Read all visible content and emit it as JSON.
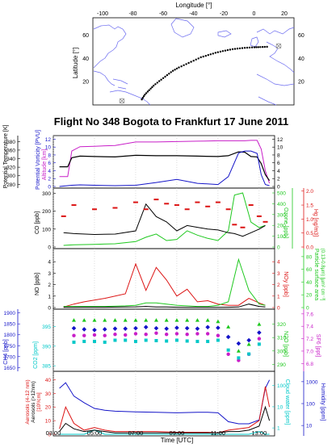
{
  "title": "Flight No 348 Bogota to Frankfurt 17 June 2011",
  "map": {
    "xlabel": "Longitude [°]",
    "ylabel": "Latitude [°]",
    "x_ticks": [
      "-100",
      "-80",
      "-60",
      "-40",
      "-20",
      "0",
      "20"
    ],
    "y_ticks": [
      "20",
      "40",
      "60"
    ],
    "origin": {
      "lon": -74.1,
      "lat": 4.7
    },
    "destination": {
      "lon": 8.6,
      "lat": 50.0
    },
    "colors": {
      "coast": "#6c6cf0",
      "track": "#000000"
    }
  },
  "time_axis": {
    "label": "Time [UTC]",
    "ticks": [
      "03:00",
      "05:00",
      "07:00",
      "09:00",
      "11:00",
      "13:00"
    ]
  },
  "panels": [
    {
      "id": "altitude-pv",
      "left_labels": [
        {
          "text": "Potential Temperature [K]",
          "color": "#000000"
        },
        {
          "text": "Potential Vorticity [PVU]",
          "color": "#1414c8"
        },
        {
          "text": "Altitude [km]",
          "color": "#c81ec8"
        }
      ],
      "left_ticks_outer": [
        "280",
        "300",
        "320",
        "340",
        "360",
        "380"
      ],
      "left_ticks_inner": [
        "0",
        "2",
        "4",
        "6",
        "8",
        "10",
        "12"
      ],
      "right_ticks": [
        "0",
        "2",
        "4",
        "6",
        "8",
        "10",
        "12"
      ]
    },
    {
      "id": "co-ozone-hg",
      "left_label": {
        "text": "CO [ppb]",
        "color": "#000000"
      },
      "left_ticks": [
        "0",
        "100",
        "200",
        "300"
      ],
      "right_labels": [
        {
          "text": "Ozone [ppb]",
          "color": "#1ec81e"
        },
        {
          "text": "Hg [ng/m3]",
          "color": "#dc1414"
        }
      ],
      "right_ticks_1": [
        "0",
        "100",
        "200",
        "300",
        "400",
        "500"
      ],
      "right_ticks_2": [
        "0.0",
        "0.5",
        "1.0",
        "1.5",
        "2.0"
      ]
    },
    {
      "id": "no-particles",
      "left_label": {
        "text": "NO [ppb]",
        "color": "#000000"
      },
      "left_ticks": [
        "0",
        "1",
        "2",
        "3",
        "4"
      ],
      "right_labels": [
        {
          "text": "NOy [ppb]",
          "color": "#dc1414"
        },
        {
          "text": "Particle surface area",
          "color": "#1ec81e"
        },
        {
          "text": "(0.13-0.8µm) [µm² cm⁻³]",
          "color": "#1ec81e"
        }
      ],
      "right_ticks_1": [
        "0",
        "1",
        "2",
        "3",
        "4"
      ],
      "right_ticks_2": [
        "0",
        "20",
        "40",
        "60",
        "80"
      ]
    },
    {
      "id": "ch4-co2-n2o-sf6",
      "left_labels": [
        {
          "text": "CH4 [ppb]",
          "color": "#1414c8"
        },
        {
          "text": "CO2 [ppm]",
          "color": "#00c8c8"
        }
      ],
      "left_ticks_outer": [
        "1650",
        "1700",
        "1750",
        "1800",
        "1850",
        "1900"
      ],
      "left_ticks_inner": [
        "385",
        "390",
        "395"
      ],
      "right_labels": [
        {
          "text": "N2O [ppb]",
          "color": "#1ec81e"
        },
        {
          "text": "SF6 [ppt]",
          "color": "#c81ec8"
        }
      ],
      "right_ticks_1": [
        "290",
        "300",
        "310",
        "320"
      ],
      "right_ticks_2": [
        "6.8",
        "7.0",
        "7.2",
        "7.4",
        "7.6"
      ]
    },
    {
      "id": "aerosols-humidity",
      "left_labels": [
        {
          "text": "Aerosols (4-12 nm)",
          "color": "#dc1414"
        },
        {
          "text": "Aerosols (>12nm)",
          "color": "#000000"
        },
        {
          "text": "[10³/cm]",
          "color": "#dc1414"
        }
      ],
      "left_ticks": [
        "0",
        "10",
        "20",
        "30",
        "40"
      ],
      "right_labels": [
        {
          "text": "Cloud water [ppm]",
          "color": "#00c8c8"
        },
        {
          "text": "Humidity [ppm]",
          "color": "#1414c8"
        }
      ],
      "right_ticks_1": [
        "1",
        "10",
        "100"
      ],
      "right_ticks_2": [
        "10",
        "100",
        "1000"
      ]
    }
  ],
  "chart_data": [
    {
      "type": "line",
      "panel": "map",
      "series": [
        {
          "name": "",
          "lon": [
            -74.1,
            -72,
            -69,
            -66,
            -62,
            -58,
            -54,
            -50,
            -45,
            -40,
            -35,
            -30,
            -25,
            -20,
            -15,
            -10,
            -5,
            0,
            4,
            8.6
          ],
          "lat": [
            4.7,
            9,
            13,
            17,
            21,
            25,
            29,
            32,
            35,
            38,
            41,
            43,
            45,
            46.5,
            47.8,
            48.6,
            49.2,
            49.6,
            49.8,
            50.0
          ]
        }
      ],
      "xlim": [
        -100,
        20
      ],
      "ylim": [
        0,
        75
      ]
    },
    {
      "type": "line",
      "panel": "altitude-pv",
      "x": [
        3.3,
        3.7,
        3.9,
        4.3,
        5.0,
        6.0,
        7.0,
        8.0,
        9.0,
        10.0,
        11.0,
        11.5,
        12.0,
        12.3,
        12.6,
        12.9,
        13.1,
        13.3,
        13.5
      ],
      "series": [
        {
          "name": "",
          "color": "#c81ec8",
          "values": [
            2.5,
            2.5,
            9.0,
            10.1,
            10.2,
            10.4,
            11.3,
            11.3,
            11.4,
            11.5,
            11.6,
            11.6,
            11.6,
            11.6,
            11.7,
            11.7,
            9.5,
            4.0,
            0.8
          ]
        },
        {
          "name": "",
          "color": "#000000",
          "values": [
            5.0,
            5.0,
            7.3,
            7.7,
            7.6,
            7.5,
            7.9,
            7.8,
            7.8,
            7.7,
            7.6,
            7.8,
            8.8,
            8.7,
            7.6,
            7.5,
            5.8,
            3.0,
            1.5
          ]
        },
        {
          "name": "",
          "color": "#1414c8",
          "values": [
            0.0,
            0.2,
            0.3,
            0.4,
            0.3,
            0.2,
            0.3,
            1.0,
            1.8,
            0.8,
            0.5,
            2.5,
            8.5,
            9.0,
            9.0,
            8.4,
            3.0,
            0.5,
            0.2
          ]
        }
      ],
      "xlim": [
        3,
        13.75
      ]
    },
    {
      "type": "line",
      "panel": "co-ozone-hg",
      "x": [
        3.5,
        4.0,
        5.0,
        6.0,
        7.0,
        7.5,
        8.0,
        8.5,
        9.0,
        9.5,
        10.0,
        10.5,
        11.0,
        11.5,
        11.8,
        12.2,
        12.6,
        13.0,
        13.3
      ],
      "series": [
        {
          "name": "",
          "color": "#000000",
          "values": [
            80,
            75,
            70,
            72,
            90,
            240,
            170,
            140,
            90,
            120,
            110,
            100,
            95,
            80,
            75,
            60,
            80,
            100,
            120
          ]
        },
        {
          "name": "",
          "color": "#1ec81e",
          "values": [
            15,
            20,
            25,
            30,
            50,
            90,
            120,
            60,
            70,
            150,
            110,
            80,
            60,
            150,
            480,
            500,
            230,
            180,
            200
          ]
        },
        {
          "name": "",
          "color": "#dc1414",
          "values": [
            1.1,
            1.5,
            1.35,
            1.4,
            1.6,
            1.35,
            1.7,
            1.55,
            1.5,
            1.35,
            1.6,
            1.45,
            1.6,
            1.35,
            0.8,
            0.7,
            1.5,
            1.1,
            0.9
          ]
        }
      ],
      "ylim": [
        0,
        320
      ],
      "xlim": [
        3,
        13.75
      ]
    },
    {
      "type": "line",
      "panel": "no-particles",
      "x": [
        3.5,
        4.0,
        4.5,
        5.5,
        6.5,
        7.0,
        7.5,
        8.0,
        8.5,
        9.0,
        9.5,
        10.0,
        10.5,
        11.0,
        11.5,
        12.0,
        12.5,
        13.0,
        13.3
      ],
      "series": [
        {
          "name": "",
          "color": "#dc1414",
          "values": [
            0.05,
            0.3,
            0.5,
            0.8,
            1.2,
            3.8,
            1.5,
            3.5,
            2.4,
            1.0,
            1.6,
            0.5,
            0.6,
            0.3,
            0.2,
            0.2,
            0.8,
            0.4,
            0.2
          ]
        },
        {
          "name": "",
          "color": "#1ec81e",
          "values": [
            0.1,
            0.1,
            0.1,
            0.1,
            0.15,
            0.2,
            0.4,
            0.4,
            0.3,
            0.2,
            0.15,
            0.1,
            0.1,
            0.2,
            0.5,
            4.2,
            1.5,
            0.3,
            0.2
          ]
        },
        {
          "name": "",
          "color": "#000000",
          "values": [
            0.02,
            0.02,
            0.03,
            0.03,
            0.05,
            0.06,
            0.1,
            0.05,
            0.05,
            0.03,
            0.02,
            0.02,
            0.02,
            0.02,
            0.03,
            0.05,
            0.3,
            0.1,
            0.05
          ]
        }
      ],
      "ylim": [
        0,
        5
      ],
      "xlim": [
        3,
        13.75
      ]
    },
    {
      "type": "scatter",
      "panel": "ch4-co2-n2o-sf6",
      "x": [
        4.0,
        4.5,
        5.0,
        5.5,
        6.0,
        6.5,
        7.0,
        7.5,
        8.0,
        8.5,
        9.0,
        9.5,
        10.0,
        10.5,
        11.0,
        11.5,
        12.0,
        12.5,
        13.0
      ],
      "series": [
        {
          "name": "",
          "color": "#1ec81e",
          "values": [
            323,
            323,
            323,
            323,
            323,
            323,
            323,
            323,
            323,
            323,
            323,
            323,
            323,
            323,
            322,
            318,
            300,
            305,
            320
          ]
        },
        {
          "name": "",
          "color": "#1414c8",
          "values": [
            1830,
            1825,
            1822,
            1825,
            1828,
            1828,
            1830,
            1835,
            1830,
            1828,
            1832,
            1830,
            1828,
            1835,
            1832,
            1790,
            1760,
            1775,
            1810
          ]
        },
        {
          "name": "",
          "color": "#c81ec8",
          "values": [
            7.25,
            7.25,
            7.26,
            7.25,
            7.27,
            7.26,
            7.28,
            7.27,
            7.29,
            7.27,
            7.28,
            7.27,
            7.28,
            7.28,
            7.25,
            6.95,
            6.85,
            6.95,
            7.2
          ]
        },
        {
          "name": "",
          "color": "#00c8c8",
          "values": [
            391.0,
            391.2,
            391.2,
            391.0,
            391.5,
            391.5,
            391.2,
            391.5,
            391.4,
            391.3,
            391.5,
            391.3,
            391.2,
            391.2,
            391.5,
            389.0,
            387.0,
            388.0,
            390.5
          ]
        }
      ],
      "xlim": [
        3,
        13.75
      ]
    },
    {
      "type": "line",
      "panel": "aerosols-humidity",
      "x": [
        3.3,
        3.6,
        4.0,
        4.5,
        5.0,
        5.5,
        6.0,
        7.0,
        8.0,
        9.0,
        10.0,
        10.5,
        11.0,
        11.5,
        12.0,
        12.5,
        13.0,
        13.3,
        13.5
      ],
      "series": [
        {
          "name": "",
          "color": "#1414c8",
          "values": [
            500,
            900,
            220,
            110,
            60,
            50,
            45,
            42,
            40,
            38,
            40,
            40,
            38,
            15,
            12,
            12,
            18,
            500,
            1200
          ]
        },
        {
          "name": "",
          "color": "#dc1414",
          "values": [
            4,
            20,
            8,
            3,
            5,
            3,
            2,
            2,
            2,
            1.5,
            1.5,
            1.5,
            1,
            3,
            4,
            5,
            10,
            35,
            20
          ]
        },
        {
          "name": "",
          "color": "#000000",
          "values": [
            2,
            8,
            4,
            2,
            3,
            2,
            1,
            1,
            1,
            1,
            1,
            1,
            1,
            2,
            2,
            3,
            6,
            20,
            10
          ]
        },
        {
          "name": "",
          "color": "#00c8c8",
          "values": [
            0,
            0,
            0,
            0,
            3,
            0,
            0,
            0,
            0,
            0,
            0,
            0,
            0,
            0,
            0,
            0,
            2,
            0,
            0
          ]
        }
      ],
      "xlim": [
        3,
        13.75
      ]
    }
  ]
}
